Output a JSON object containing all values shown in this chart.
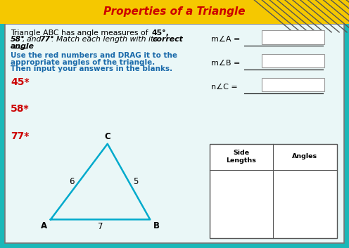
{
  "title": "Properties of a Triangle",
  "title_bg": "#f5c800",
  "title_color": "#cc0000",
  "title_fontsize": 11,
  "bg_color": "#1ab8b8",
  "inner_bg": "#eaf7f7",
  "instruction_color": "#1a6aaa",
  "red_labels": [
    "45*",
    "58*",
    "77*"
  ],
  "red_color": "#cc0000",
  "triangle_color": "#00aacc",
  "triangle_linewidth": 1.8,
  "vertex_labels": [
    "A",
    "B",
    "C"
  ],
  "side_labels": [
    "6",
    "5",
    "7"
  ],
  "angle_labels": [
    "m∠A =",
    "m∠B =",
    "n∠C ="
  ],
  "table_header": [
    "Side\nLengths",
    "Angles"
  ]
}
